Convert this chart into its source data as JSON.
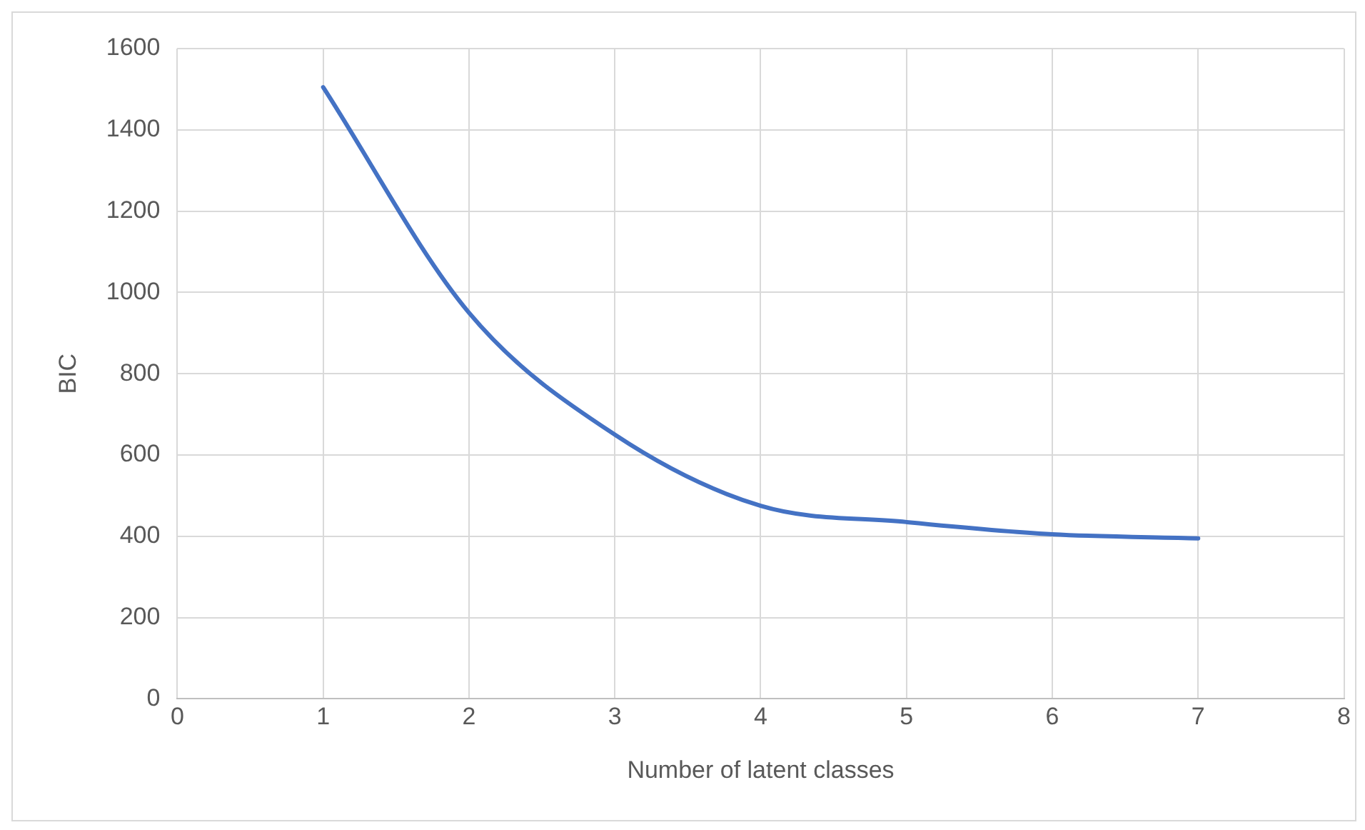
{
  "chart_data": {
    "type": "line",
    "xlabel": "Number of latent classes",
    "ylabel": "BIC",
    "x": [
      1,
      2,
      3,
      4,
      5,
      6,
      7
    ],
    "series": [
      {
        "color": "#4472c4",
        "values": [
          1505,
          950,
          650,
          475,
          435,
          405,
          395
        ]
      }
    ],
    "xlim": [
      0,
      8
    ],
    "xticks": [
      0,
      1,
      2,
      3,
      4,
      5,
      6,
      7,
      8
    ],
    "ylim": [
      0,
      1600
    ],
    "yticks": [
      0,
      200,
      400,
      600,
      800,
      1000,
      1200,
      1400,
      1600
    ],
    "grid": true,
    "legend": false,
    "marker": "none",
    "line_style": "solid"
  }
}
